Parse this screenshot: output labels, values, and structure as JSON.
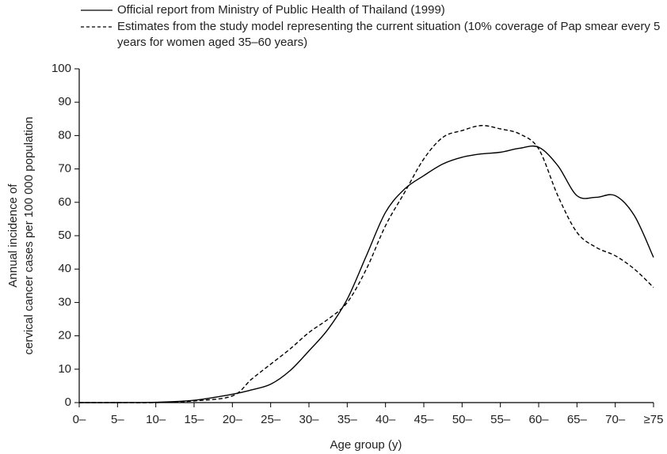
{
  "chart_data": {
    "type": "line",
    "x": [
      0,
      5,
      10,
      15,
      20,
      22.5,
      25,
      27.5,
      30,
      32.5,
      35,
      37.5,
      40,
      42.5,
      45,
      47.5,
      50,
      52.5,
      55,
      57.5,
      60,
      62.5,
      65,
      67.5,
      70,
      72.5,
      75
    ],
    "series": [
      {
        "name": "Official report from Ministry of Public Health of Thailand (1999)",
        "color": "#000000",
        "dash": "solid",
        "values": [
          0,
          0,
          0.1,
          0.7,
          2.5,
          3.8,
          5.5,
          9.5,
          15.5,
          22,
          31,
          44,
          57,
          64,
          68,
          71.5,
          73.5,
          74.5,
          75,
          76.2,
          76.5,
          71,
          62,
          61.5,
          62,
          56,
          43.5
        ]
      },
      {
        "name": "Estimates from the study model representing the current situation (10% coverage of Pap smear every 5 years for women aged 35–60 years)",
        "color": "#000000",
        "dash": "dashed",
        "values": [
          0,
          0,
          0,
          0.5,
          2,
          7,
          11.5,
          16,
          21,
          25,
          30,
          40,
          53,
          63,
          73,
          79.5,
          81.5,
          83,
          82,
          80.5,
          76,
          62,
          51,
          46.5,
          44,
          40,
          34.5
        ]
      }
    ],
    "xlim": [
      0,
      75
    ],
    "xticks": [
      {
        "value": 0,
        "label": "0–"
      },
      {
        "value": 5,
        "label": "5–"
      },
      {
        "value": 10,
        "label": "10–"
      },
      {
        "value": 15,
        "label": "15–"
      },
      {
        "value": 20,
        "label": "20–"
      },
      {
        "value": 25,
        "label": "25–"
      },
      {
        "value": 30,
        "label": "30–"
      },
      {
        "value": 35,
        "label": "35–"
      },
      {
        "value": 40,
        "label": "40–"
      },
      {
        "value": 45,
        "label": "45–"
      },
      {
        "value": 50,
        "label": "50–"
      },
      {
        "value": 55,
        "label": "55–"
      },
      {
        "value": 60,
        "label": "60–"
      },
      {
        "value": 65,
        "label": "65–"
      },
      {
        "value": 70,
        "label": "70–"
      },
      {
        "value": 75,
        "label": "≥75"
      }
    ],
    "ylim": [
      0,
      100
    ],
    "yticks": [
      0,
      10,
      20,
      30,
      40,
      50,
      60,
      70,
      80,
      90,
      100
    ],
    "xlabel": "Age group (y)",
    "ylabel": [
      "Annual incidence of",
      "cervical cancer cases per 100 000 population"
    ]
  }
}
